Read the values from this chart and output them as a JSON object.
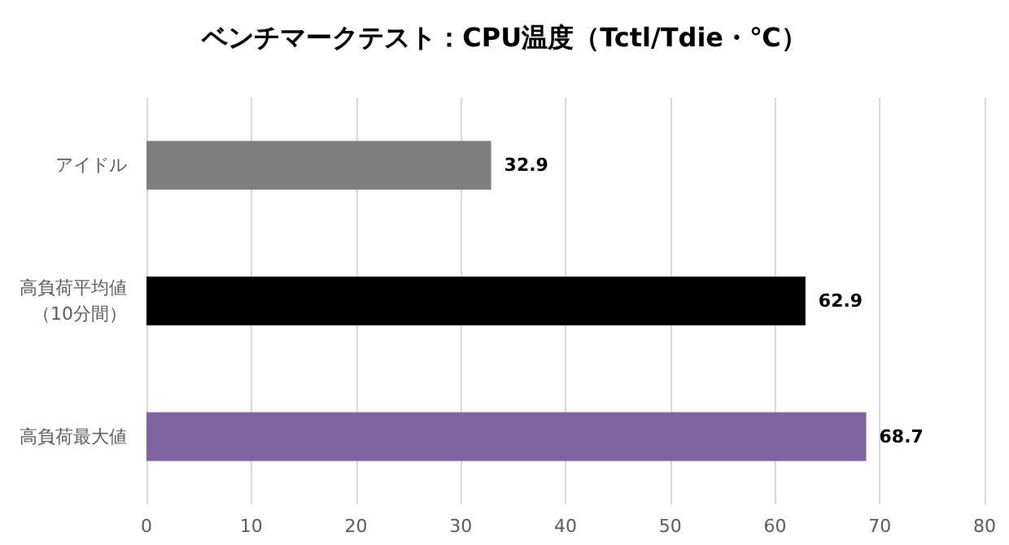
{
  "chart_data": {
    "type": "bar",
    "orientation": "horizontal",
    "title": "ベンチマークテスト：CPU温度（Tctl/Tdie・℃）",
    "categories": [
      "アイドル",
      "高負荷平均値（10分間）",
      "高負荷最大値"
    ],
    "values": [
      32.9,
      62.9,
      68.7
    ],
    "colors": [
      "#7f7f7f",
      "#000000",
      "#8064a2"
    ],
    "xlim": [
      0,
      80
    ],
    "xticks": [
      0,
      10,
      20,
      30,
      40,
      50,
      60,
      70,
      80
    ],
    "grid": "x",
    "data_labels": true
  }
}
